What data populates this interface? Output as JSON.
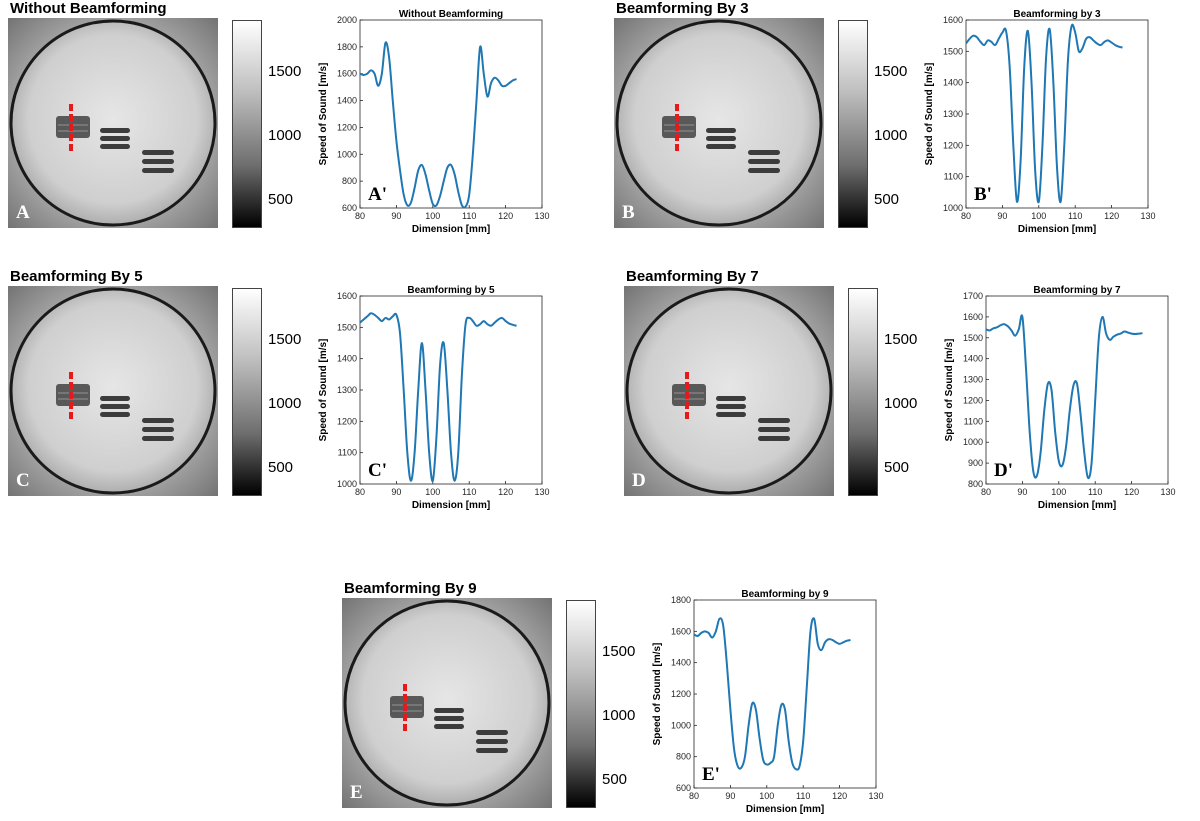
{
  "panels": [
    {
      "image_title": "Without Beamforming",
      "image_letter": "A",
      "colorbar_ticks": [
        "1500",
        "1000",
        "500"
      ]
    },
    {
      "image_title": "Beamforming By 3",
      "image_letter": "B",
      "colorbar_ticks": [
        "1500",
        "1000",
        "500"
      ]
    },
    {
      "image_title": "Beamforming By 5",
      "image_letter": "C",
      "colorbar_ticks": [
        "1500",
        "1000",
        "500"
      ]
    },
    {
      "image_title": "Beamforming By 7",
      "image_letter": "D",
      "colorbar_ticks": [
        "1500",
        "1000",
        "500"
      ]
    },
    {
      "image_title": "Beamforming By 9",
      "image_letter": "E",
      "colorbar_ticks": [
        "1500",
        "1000",
        "500"
      ]
    }
  ],
  "colors": {
    "line": "#1f77b4",
    "marker": "#e8191a",
    "axis": "#262626"
  },
  "chart_data": [
    {
      "type": "line",
      "title": "Without Beamforming",
      "letter": "A'",
      "xlabel": "Dimension  [mm]",
      "ylabel": "Speed of Sound  [m/s]",
      "xlim": [
        80,
        130
      ],
      "ylim": [
        600,
        2000
      ],
      "xticks": [
        80,
        90,
        100,
        110,
        120,
        130
      ],
      "yticks": [
        600,
        800,
        1000,
        1200,
        1400,
        1600,
        1800,
        2000
      ],
      "series": [
        {
          "x": [
            80,
            81,
            82,
            83,
            84,
            85,
            86,
            87,
            88,
            89,
            90,
            91,
            92,
            93,
            94,
            95,
            96,
            97,
            98,
            99,
            100,
            101,
            102,
            103,
            104,
            105,
            106,
            107,
            108,
            109,
            110,
            111,
            112,
            113,
            114,
            115,
            116,
            117,
            118,
            119,
            120,
            121,
            122,
            123
          ],
          "y": [
            1600,
            1590,
            1600,
            1625,
            1600,
            1510,
            1600,
            1830,
            1720,
            1400,
            1100,
            880,
            700,
            620,
            640,
            750,
            880,
            920,
            850,
            730,
            630,
            620,
            690,
            800,
            900,
            920,
            850,
            720,
            620,
            610,
            700,
            1000,
            1400,
            1800,
            1600,
            1430,
            1530,
            1570,
            1550,
            1510,
            1510,
            1530,
            1550,
            1560
          ]
        }
      ]
    },
    {
      "type": "line",
      "title": "Beamforming by 3",
      "letter": "B'",
      "xlabel": "Dimension  [mm]",
      "ylabel": "Speed of Sound  [m/s]",
      "xlim": [
        80,
        130
      ],
      "ylim": [
        1000,
        1600
      ],
      "xticks": [
        80,
        90,
        100,
        110,
        120,
        130
      ],
      "yticks": [
        1000,
        1100,
        1200,
        1300,
        1400,
        1500,
        1600
      ],
      "series": [
        {
          "x": [
            80,
            81,
            82,
            83,
            84,
            85,
            86,
            87,
            88,
            89,
            90,
            91,
            92,
            93,
            94,
            95,
            96,
            97,
            98,
            99,
            100,
            101,
            102,
            103,
            104,
            105,
            106,
            107,
            108,
            109,
            110,
            111,
            112,
            113,
            114,
            115,
            116,
            117,
            118,
            119,
            120,
            121,
            122,
            123
          ],
          "y": [
            1525,
            1540,
            1550,
            1545,
            1530,
            1520,
            1535,
            1530,
            1520,
            1540,
            1560,
            1565,
            1450,
            1200,
            1020,
            1150,
            1450,
            1565,
            1400,
            1120,
            1020,
            1200,
            1480,
            1570,
            1400,
            1130,
            1020,
            1200,
            1470,
            1580,
            1560,
            1500,
            1510,
            1540,
            1545,
            1535,
            1525,
            1520,
            1530,
            1535,
            1528,
            1520,
            1515,
            1512
          ]
        }
      ]
    },
    {
      "type": "line",
      "title": "Beamforming by 5",
      "letter": "C'",
      "xlabel": "Dimension  [mm]",
      "ylabel": "Speed of Sound  [m/s]",
      "xlim": [
        80,
        130
      ],
      "ylim": [
        1000,
        1600
      ],
      "xticks": [
        80,
        90,
        100,
        110,
        120,
        130
      ],
      "yticks": [
        1000,
        1100,
        1200,
        1300,
        1400,
        1500,
        1600
      ],
      "series": [
        {
          "x": [
            80,
            81,
            82,
            83,
            84,
            85,
            86,
            87,
            88,
            89,
            90,
            91,
            92,
            93,
            94,
            95,
            96,
            97,
            98,
            99,
            100,
            101,
            102,
            103,
            104,
            105,
            106,
            107,
            108,
            109,
            110,
            111,
            112,
            113,
            114,
            115,
            116,
            117,
            118,
            119,
            120,
            121,
            122,
            123
          ],
          "y": [
            1515,
            1525,
            1535,
            1545,
            1540,
            1530,
            1520,
            1530,
            1525,
            1535,
            1540,
            1480,
            1300,
            1100,
            1010,
            1100,
            1300,
            1450,
            1300,
            1100,
            1010,
            1150,
            1380,
            1450,
            1300,
            1100,
            1010,
            1100,
            1350,
            1510,
            1530,
            1520,
            1505,
            1510,
            1520,
            1510,
            1505,
            1515,
            1525,
            1530,
            1520,
            1512,
            1508,
            1505
          ]
        }
      ]
    },
    {
      "type": "line",
      "title": "Beamforming by 7",
      "letter": "D'",
      "xlabel": "Dimension  [mm]",
      "ylabel": "Speed of Sound  [m/s]",
      "xlim": [
        80,
        130
      ],
      "ylim": [
        800,
        1700
      ],
      "xticks": [
        80,
        90,
        100,
        110,
        120,
        130
      ],
      "yticks": [
        800,
        900,
        1000,
        1100,
        1200,
        1300,
        1400,
        1500,
        1600,
        1700
      ],
      "series": [
        {
          "x": [
            80,
            81,
            82,
            83,
            84,
            85,
            86,
            87,
            88,
            89,
            90,
            91,
            92,
            93,
            94,
            95,
            96,
            97,
            98,
            99,
            100,
            101,
            102,
            103,
            104,
            105,
            106,
            107,
            108,
            109,
            110,
            111,
            112,
            113,
            114,
            115,
            116,
            117,
            118,
            119,
            120,
            121,
            122,
            123
          ],
          "y": [
            1540,
            1535,
            1545,
            1550,
            1560,
            1565,
            1555,
            1535,
            1510,
            1540,
            1600,
            1350,
            1050,
            860,
            840,
            950,
            1150,
            1280,
            1250,
            1050,
            910,
            890,
            980,
            1150,
            1270,
            1280,
            1130,
            950,
            830,
            900,
            1200,
            1500,
            1600,
            1520,
            1490,
            1505,
            1515,
            1520,
            1530,
            1525,
            1520,
            1518,
            1520,
            1522
          ]
        }
      ]
    },
    {
      "type": "line",
      "title": "Beamforming by 9",
      "letter": "E'",
      "xlabel": "Dimension  [mm]",
      "ylabel": "Speed of Sound  [m/s]",
      "xlim": [
        80,
        130
      ],
      "ylim": [
        600,
        1800
      ],
      "xticks": [
        80,
        90,
        100,
        110,
        120,
        130
      ],
      "yticks": [
        600,
        800,
        1000,
        1200,
        1400,
        1600,
        1800
      ],
      "series": [
        {
          "x": [
            80,
            81,
            82,
            83,
            84,
            85,
            86,
            87,
            88,
            89,
            90,
            91,
            92,
            93,
            94,
            95,
            96,
            97,
            98,
            99,
            100,
            101,
            102,
            103,
            104,
            105,
            106,
            107,
            108,
            109,
            110,
            111,
            112,
            113,
            114,
            115,
            116,
            117,
            118,
            119,
            120,
            121,
            122,
            123
          ],
          "y": [
            1580,
            1570,
            1590,
            1600,
            1590,
            1560,
            1600,
            1680,
            1640,
            1400,
            1100,
            850,
            740,
            730,
            800,
            1000,
            1140,
            1100,
            920,
            780,
            750,
            760,
            800,
            1000,
            1130,
            1100,
            900,
            760,
            720,
            740,
            900,
            1250,
            1600,
            1680,
            1520,
            1480,
            1530,
            1550,
            1545,
            1530,
            1520,
            1530,
            1540,
            1545
          ]
        }
      ]
    }
  ]
}
